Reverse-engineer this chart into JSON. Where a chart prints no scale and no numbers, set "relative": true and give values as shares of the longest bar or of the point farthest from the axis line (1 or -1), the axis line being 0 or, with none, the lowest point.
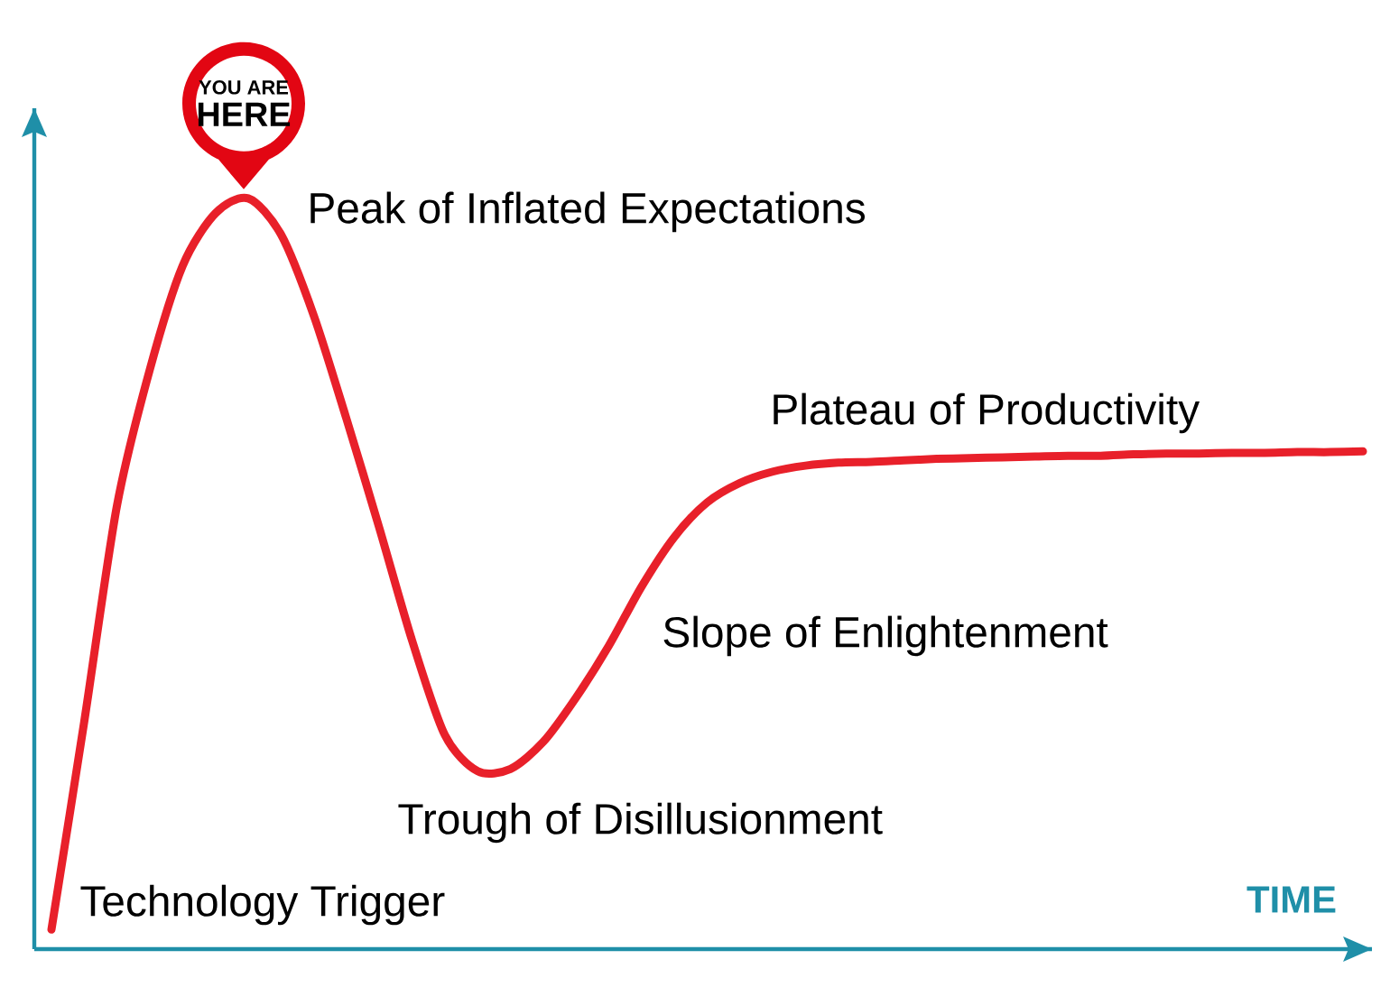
{
  "chart_data": {
    "type": "line",
    "relative": true,
    "xlabel": "TIME",
    "marker": "none",
    "line_style": "solid",
    "categories": [
      null,
      null,
      null,
      null,
      null,
      null,
      null,
      null,
      null,
      null,
      null,
      null,
      null,
      null,
      null,
      null,
      null,
      null,
      null,
      null,
      null,
      null,
      null,
      null,
      null,
      null,
      null,
      null,
      null,
      null,
      null,
      null,
      null,
      null,
      null,
      null,
      null,
      null,
      null,
      null,
      null
    ],
    "series": [
      {
        "color": "#e8202a",
        "values": [
          0.026,
          0.303,
          0.591,
          0.772,
          0.91,
          0.98,
          1.0,
          0.952,
          0.844,
          0.706,
          0.561,
          0.411,
          0.285,
          0.237,
          0.24,
          0.276,
          0.335,
          0.404,
          0.483,
          0.549,
          0.595,
          0.621,
          0.636,
          0.644,
          0.648,
          0.649,
          0.651,
          0.653,
          0.654,
          0.655,
          0.656,
          0.657,
          0.657,
          0.659,
          0.66,
          0.66,
          0.661,
          0.661,
          0.662,
          0.662,
          0.663
        ]
      }
    ],
    "annotations": [
      "YOU ARE",
      "HERE",
      "Peak of Inflated Expectations",
      "Plateau of Productivity",
      "Slope of Enlightenment",
      "Trough of Disillusionment",
      "Technology Trigger"
    ]
  }
}
